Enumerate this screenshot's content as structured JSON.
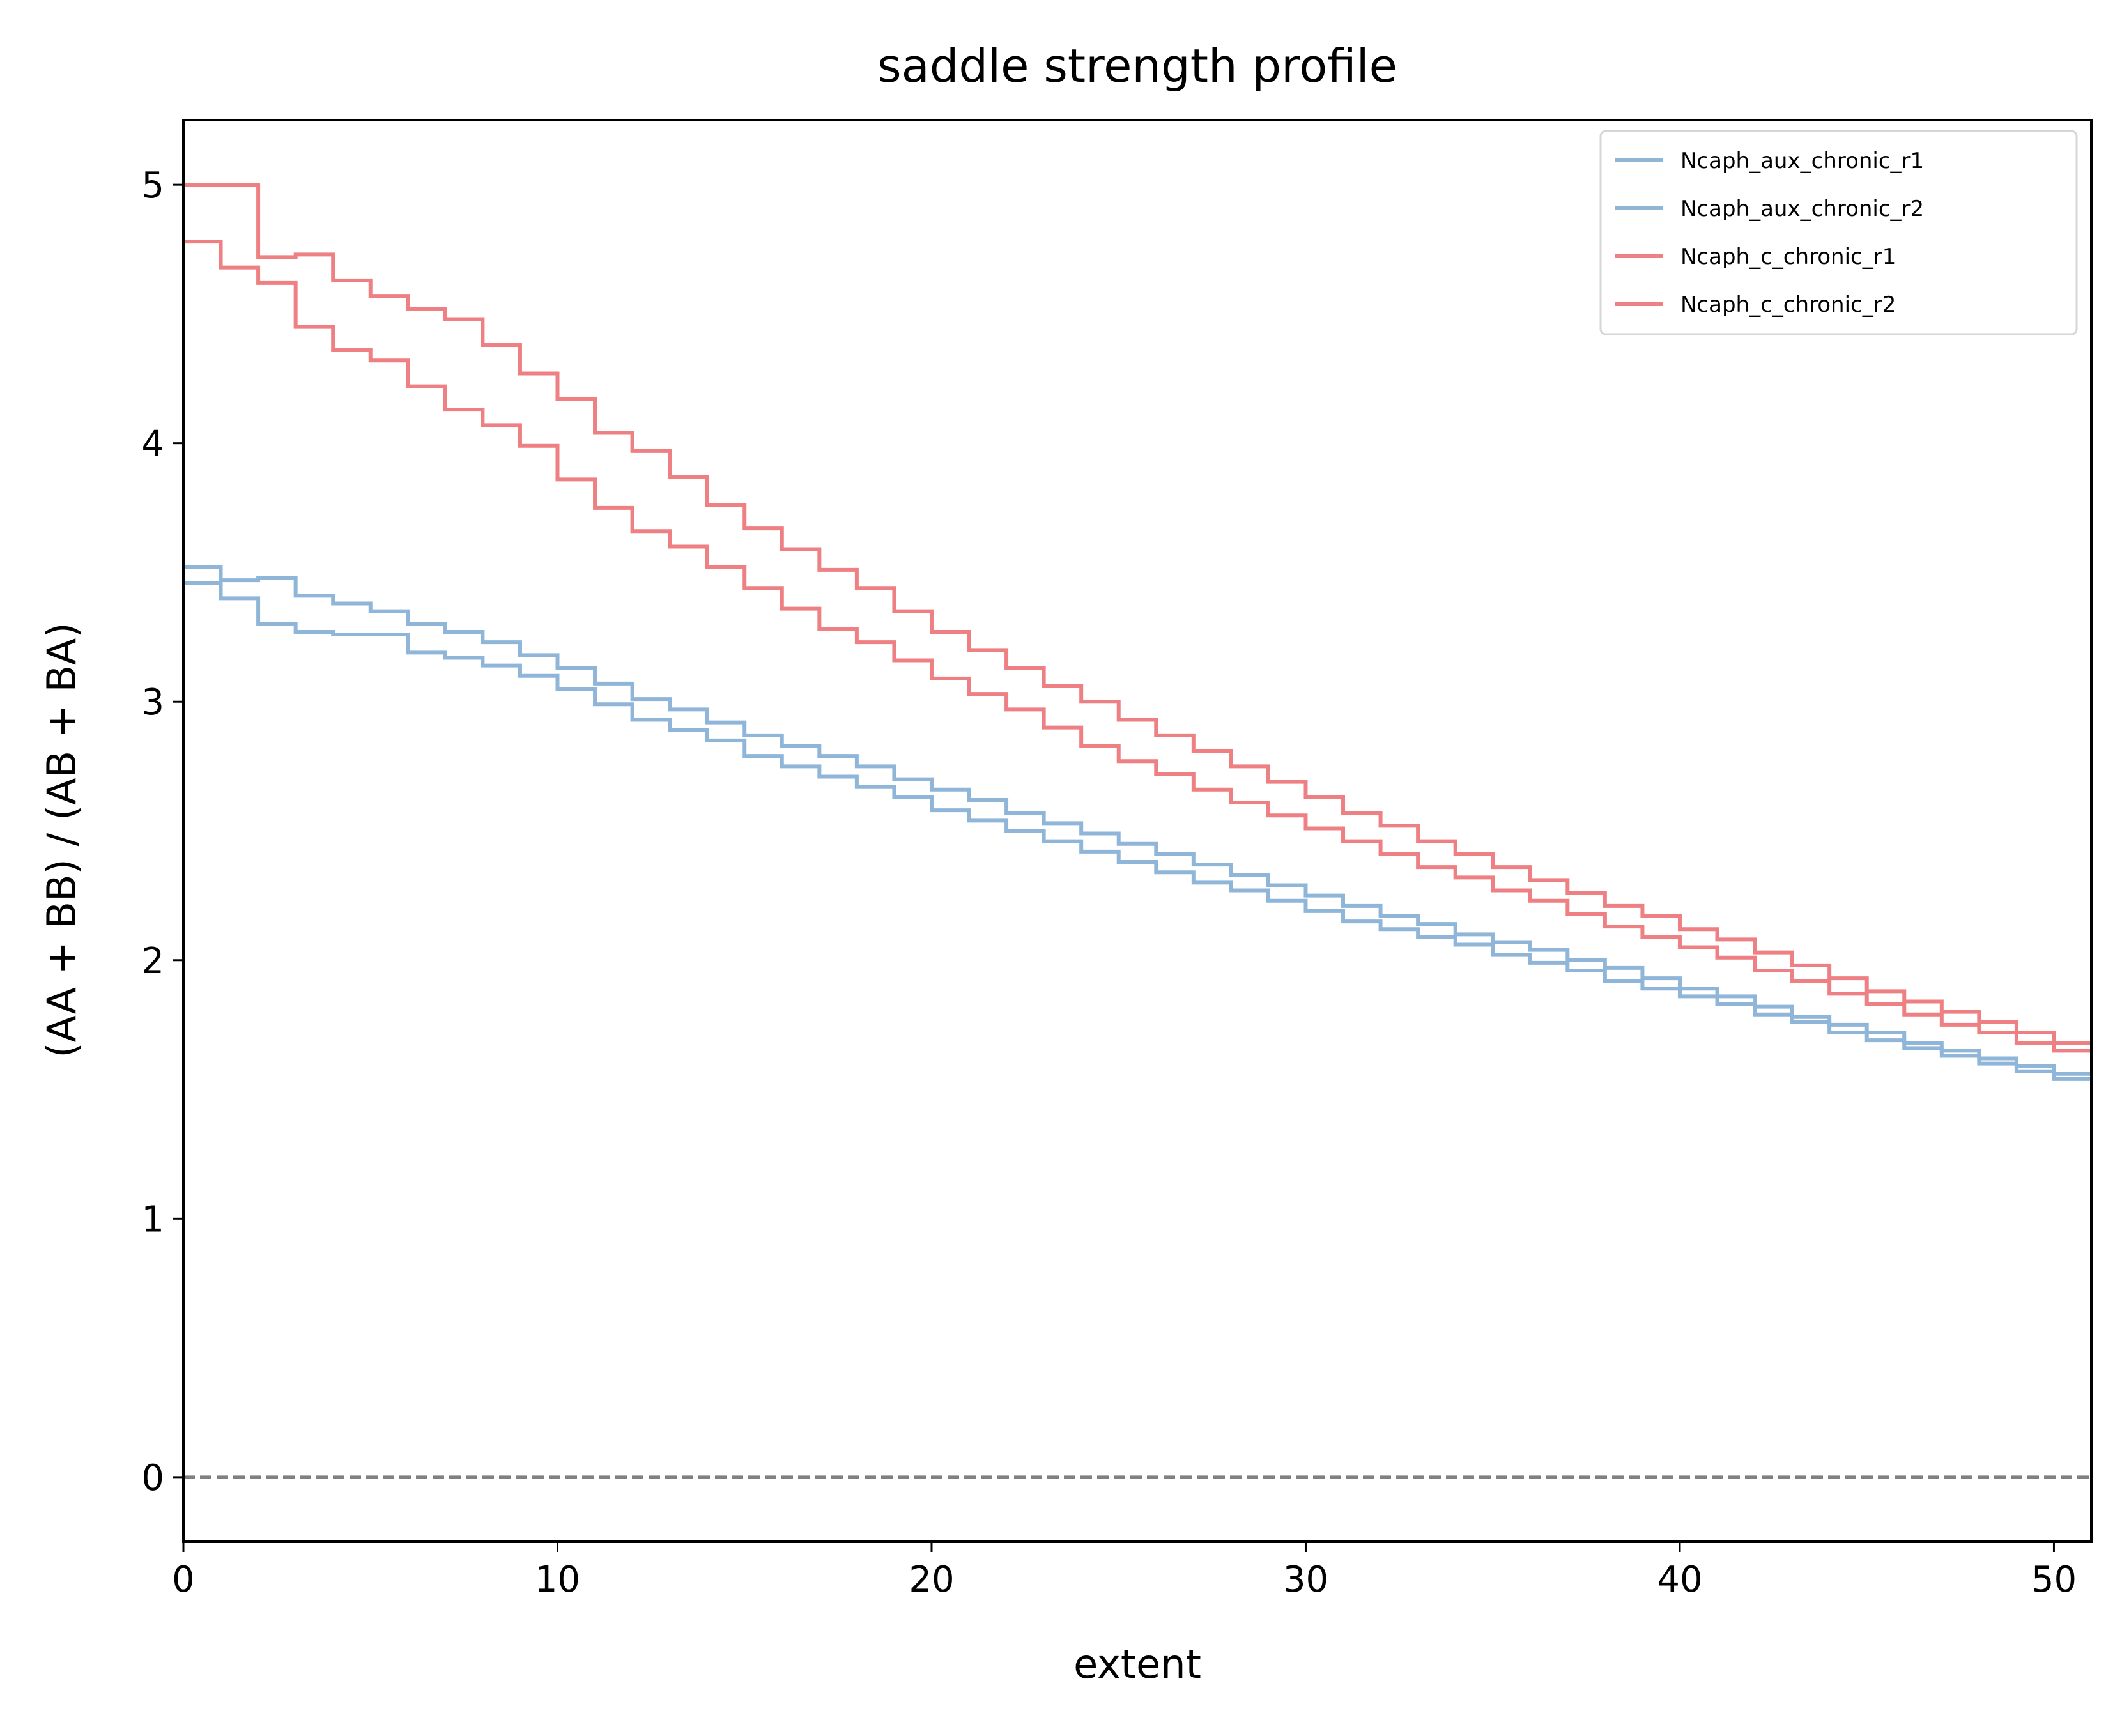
{
  "chart_data": {
    "type": "line",
    "title": "saddle strength profile",
    "xlabel": "extent",
    "ylabel": "(AA + BB) / (AB + BA)",
    "xlim": [
      0,
      51
    ],
    "ylim": [
      -0.25,
      5.25
    ],
    "xticks": [
      "0",
      "10",
      "20",
      "30",
      "40",
      "50"
    ],
    "yticks": [
      "0",
      "1",
      "2",
      "3",
      "4",
      "5"
    ],
    "grid": false,
    "legend_position": "top-right",
    "reference_line": {
      "y": 0,
      "style": "dashed",
      "color": "#808080"
    },
    "series": [
      {
        "name": "Ncaph_aux_chronic_r1",
        "color": "#8fb6d9",
        "values": [
          3.52,
          3.47,
          3.48,
          3.41,
          3.38,
          3.35,
          3.3,
          3.27,
          3.23,
          3.18,
          3.13,
          3.07,
          3.01,
          2.97,
          2.92,
          2.87,
          2.83,
          2.79,
          2.75,
          2.7,
          2.66,
          2.62,
          2.57,
          2.53,
          2.49,
          2.45,
          2.41,
          2.37,
          2.33,
          2.29,
          2.25,
          2.21,
          2.17,
          2.14,
          2.1,
          2.07,
          2.04,
          2.0,
          1.97,
          1.93,
          1.89,
          1.86,
          1.82,
          1.78,
          1.75,
          1.72,
          1.68,
          1.65,
          1.62,
          1.59,
          1.56
        ]
      },
      {
        "name": "Ncaph_aux_chronic_r2",
        "color": "#8fb6d9",
        "values": [
          3.46,
          3.4,
          3.3,
          3.27,
          3.26,
          3.26,
          3.19,
          3.17,
          3.14,
          3.1,
          3.05,
          2.99,
          2.93,
          2.89,
          2.85,
          2.79,
          2.75,
          2.71,
          2.67,
          2.63,
          2.58,
          2.54,
          2.5,
          2.46,
          2.42,
          2.38,
          2.34,
          2.3,
          2.27,
          2.23,
          2.19,
          2.15,
          2.12,
          2.09,
          2.06,
          2.02,
          1.99,
          1.96,
          1.92,
          1.89,
          1.86,
          1.83,
          1.79,
          1.76,
          1.72,
          1.69,
          1.66,
          1.63,
          1.6,
          1.57,
          1.54
        ]
      },
      {
        "name": "Ncaph_c_chronic_r1",
        "color": "#ee7f82",
        "values": [
          5.0,
          5.0,
          4.72,
          4.73,
          4.63,
          4.57,
          4.52,
          4.48,
          4.38,
          4.27,
          4.17,
          4.04,
          3.97,
          3.87,
          3.76,
          3.67,
          3.59,
          3.51,
          3.44,
          3.35,
          3.27,
          3.2,
          3.13,
          3.06,
          3.0,
          2.93,
          2.87,
          2.81,
          2.75,
          2.69,
          2.63,
          2.57,
          2.52,
          2.46,
          2.41,
          2.36,
          2.31,
          2.26,
          2.21,
          2.17,
          2.12,
          2.08,
          2.03,
          1.98,
          1.93,
          1.88,
          1.84,
          1.8,
          1.76,
          1.72,
          1.68
        ]
      },
      {
        "name": "Ncaph_c_chronic_r2",
        "color": "#ee7f82",
        "values": [
          4.78,
          4.68,
          4.62,
          4.45,
          4.36,
          4.32,
          4.22,
          4.13,
          4.07,
          3.99,
          3.86,
          3.75,
          3.66,
          3.6,
          3.52,
          3.44,
          3.36,
          3.28,
          3.23,
          3.16,
          3.09,
          3.03,
          2.97,
          2.9,
          2.83,
          2.77,
          2.72,
          2.66,
          2.61,
          2.56,
          2.51,
          2.46,
          2.41,
          2.36,
          2.32,
          2.27,
          2.23,
          2.18,
          2.13,
          2.09,
          2.05,
          2.01,
          1.96,
          1.92,
          1.87,
          1.83,
          1.79,
          1.75,
          1.72,
          1.68,
          1.65
        ]
      }
    ]
  }
}
